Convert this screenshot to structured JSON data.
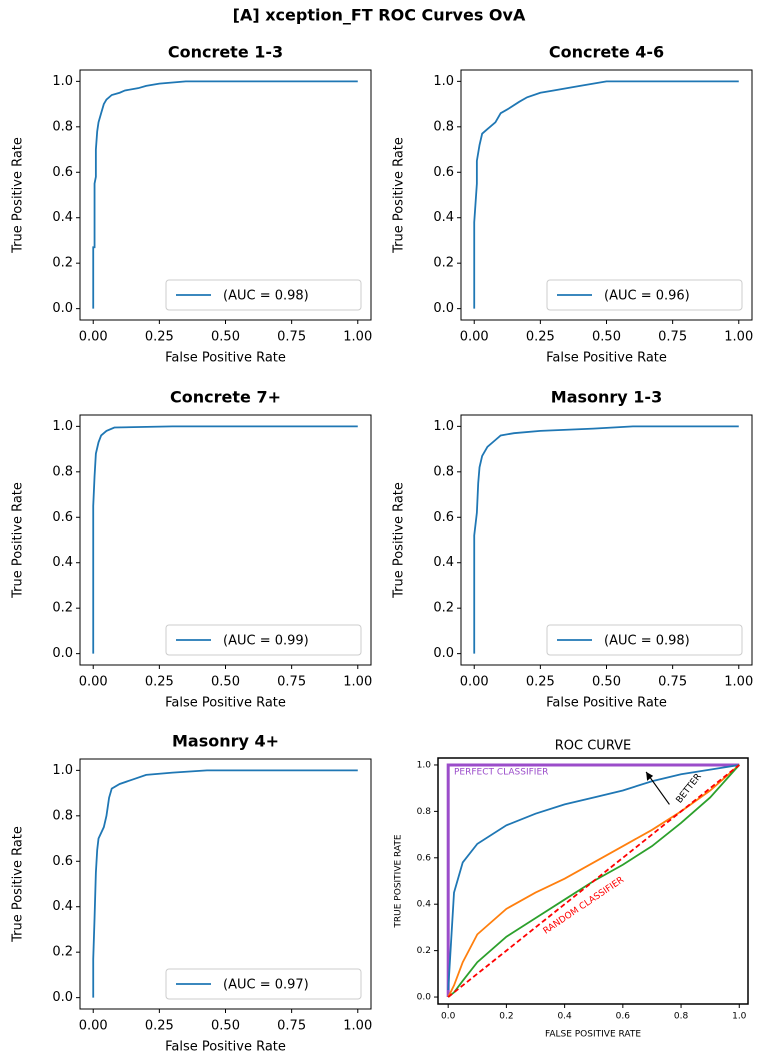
{
  "title": "[A] xception_FT ROC Curves OvA",
  "chart_data": [
    {
      "type": "line",
      "title": "Concrete 1-3",
      "xlabel": "False Positive Rate",
      "ylabel": "True Positive Rate",
      "x": [
        0,
        0,
        0.005,
        0.005,
        0.01,
        0.01,
        0.015,
        0.02,
        0.03,
        0.04,
        0.05,
        0.07,
        0.1,
        0.12,
        0.17,
        0.2,
        0.25,
        0.35,
        1
      ],
      "series": [
        {
          "name": "(AUC = 0.98)",
          "color": "#1f77b4",
          "values": [
            0,
            0.27,
            0.27,
            0.55,
            0.58,
            0.7,
            0.78,
            0.82,
            0.86,
            0.9,
            0.92,
            0.94,
            0.95,
            0.96,
            0.97,
            0.98,
            0.99,
            1,
            1
          ]
        }
      ],
      "xlim": [
        -0.05,
        1.05
      ],
      "ylim": [
        -0.05,
        1.05
      ],
      "xticks": [
        {
          "value": 0,
          "label": "0.00"
        },
        0.25,
        {
          "value": 0.5,
          "label": "0.50"
        },
        0.75,
        {
          "value": 1,
          "label": "1.00"
        }
      ],
      "yticks": [
        {
          "value": 0,
          "label": "0.0"
        },
        0.2,
        0.4,
        0.6,
        0.8,
        {
          "value": 1,
          "label": "1.0"
        }
      ],
      "legend": "lower right"
    },
    {
      "type": "line",
      "title": "Concrete 4-6",
      "xlabel": "False Positive Rate",
      "ylabel": "True Positive Rate",
      "x": [
        0,
        0,
        0.01,
        0.01,
        0.02,
        0.03,
        0.05,
        0.08,
        0.1,
        0.13,
        0.17,
        0.2,
        0.25,
        0.3,
        0.4,
        0.5,
        1
      ],
      "series": [
        {
          "name": "(AUC = 0.96)",
          "color": "#1f77b4",
          "values": [
            0,
            0.38,
            0.55,
            0.65,
            0.72,
            0.77,
            0.79,
            0.82,
            0.86,
            0.88,
            0.91,
            0.93,
            0.95,
            0.96,
            0.98,
            1,
            1
          ]
        }
      ],
      "xlim": [
        -0.05,
        1.05
      ],
      "ylim": [
        -0.05,
        1.05
      ],
      "xticks": [
        {
          "value": 0,
          "label": "0.00"
        },
        0.25,
        {
          "value": 0.5,
          "label": "0.50"
        },
        0.75,
        {
          "value": 1,
          "label": "1.00"
        }
      ],
      "yticks": [
        {
          "value": 0,
          "label": "0.0"
        },
        0.2,
        0.4,
        0.6,
        0.8,
        {
          "value": 1,
          "label": "1.0"
        }
      ],
      "legend": "lower right"
    },
    {
      "type": "line",
      "title": "Concrete 7+",
      "xlabel": "False Positive Rate",
      "ylabel": "True Positive Rate",
      "x": [
        0,
        0,
        0.005,
        0.01,
        0.02,
        0.03,
        0.05,
        0.08,
        0.3,
        1
      ],
      "series": [
        {
          "name": "(AUC = 0.99)",
          "color": "#1f77b4",
          "values": [
            0,
            0.65,
            0.78,
            0.88,
            0.93,
            0.96,
            0.98,
            0.995,
            1,
            1
          ]
        }
      ],
      "xlim": [
        -0.05,
        1.05
      ],
      "ylim": [
        -0.05,
        1.05
      ],
      "xticks": [
        {
          "value": 0,
          "label": "0.00"
        },
        0.25,
        {
          "value": 0.5,
          "label": "0.50"
        },
        0.75,
        {
          "value": 1,
          "label": "1.00"
        }
      ],
      "yticks": [
        {
          "value": 0,
          "label": "0.0"
        },
        0.2,
        0.4,
        0.6,
        0.8,
        {
          "value": 1,
          "label": "1.0"
        }
      ],
      "legend": "lower right"
    },
    {
      "type": "line",
      "title": "Masonry 1-3",
      "xlabel": "False Positive Rate",
      "ylabel": "True Positive Rate",
      "x": [
        0,
        0,
        0.01,
        0.015,
        0.02,
        0.03,
        0.05,
        0.08,
        0.1,
        0.15,
        0.25,
        0.45,
        0.6,
        1
      ],
      "series": [
        {
          "name": "(AUC = 0.98)",
          "color": "#1f77b4",
          "values": [
            0,
            0.52,
            0.62,
            0.75,
            0.82,
            0.87,
            0.91,
            0.94,
            0.96,
            0.97,
            0.98,
            0.99,
            1,
            1
          ]
        }
      ],
      "xlim": [
        -0.05,
        1.05
      ],
      "ylim": [
        -0.05,
        1.05
      ],
      "xticks": [
        {
          "value": 0,
          "label": "0.00"
        },
        0.25,
        {
          "value": 0.5,
          "label": "0.50"
        },
        0.75,
        {
          "value": 1,
          "label": "1.00"
        }
      ],
      "yticks": [
        {
          "value": 0,
          "label": "0.0"
        },
        0.2,
        0.4,
        0.6,
        0.8,
        {
          "value": 1,
          "label": "1.0"
        }
      ],
      "legend": "lower right"
    },
    {
      "type": "line",
      "title": "Masonry 4+",
      "xlabel": "False Positive Rate",
      "ylabel": "True Positive Rate",
      "x": [
        0,
        0,
        0.005,
        0.01,
        0.015,
        0.02,
        0.04,
        0.05,
        0.06,
        0.07,
        0.1,
        0.15,
        0.2,
        0.3,
        0.43,
        1
      ],
      "series": [
        {
          "name": "(AUC = 0.97)",
          "color": "#1f77b4",
          "values": [
            0,
            0.17,
            0.35,
            0.55,
            0.65,
            0.7,
            0.75,
            0.8,
            0.88,
            0.92,
            0.94,
            0.96,
            0.98,
            0.99,
            1,
            1
          ]
        }
      ],
      "xlim": [
        -0.05,
        1.05
      ],
      "ylim": [
        -0.05,
        1.05
      ],
      "xticks": [
        {
          "value": 0,
          "label": "0.00"
        },
        0.25,
        {
          "value": 0.5,
          "label": "0.50"
        },
        0.75,
        {
          "value": 1,
          "label": "1.00"
        }
      ],
      "yticks": [
        {
          "value": 0,
          "label": "0.0"
        },
        0.2,
        0.4,
        0.6,
        0.8,
        {
          "value": 1,
          "label": "1.0"
        }
      ],
      "legend": "lower right"
    },
    {
      "type": "line",
      "title": "ROC CURVE",
      "xlabel": "FALSE POSITIVE RATE",
      "ylabel": "TRUE POSITIVE RATE",
      "x": [
        0,
        0.02,
        0.05,
        0.1,
        0.2,
        0.3,
        0.4,
        0.5,
        0.6,
        0.7,
        0.8,
        0.9,
        1
      ],
      "series": [
        {
          "color": "#9b4dca",
          "x": [
            0,
            0,
            1
          ],
          "values": [
            0,
            1,
            1
          ]
        },
        {
          "color": "#1f77b4",
          "values": [
            0.03,
            0.45,
            0.58,
            0.66,
            0.74,
            0.79,
            0.83,
            0.86,
            0.89,
            0.93,
            0.96,
            0.98,
            1
          ]
        },
        {
          "color": "#ff7f0e",
          "values": [
            0,
            0.05,
            0.15,
            0.27,
            0.38,
            0.45,
            0.51,
            0.58,
            0.65,
            0.72,
            0.8,
            0.89,
            1
          ]
        },
        {
          "color": "#2ca02c",
          "values": [
            0,
            0.02,
            0.07,
            0.15,
            0.26,
            0.34,
            0.42,
            0.5,
            0.57,
            0.65,
            0.75,
            0.86,
            1
          ]
        },
        {
          "color": "#ff0000",
          "dashed": true,
          "values": [
            0,
            0.02,
            0.05,
            0.1,
            0.2,
            0.3,
            0.4,
            0.5,
            0.6,
            0.7,
            0.8,
            0.9,
            1
          ]
        }
      ],
      "xlim": [
        -0.035,
        1.03
      ],
      "ylim": [
        -0.03,
        1.03
      ],
      "xticks": [
        {
          "value": 0,
          "label": "0.0"
        },
        0.2,
        0.4,
        0.6,
        0.8,
        {
          "value": 1,
          "label": "1.0"
        }
      ],
      "yticks": [
        {
          "value": 0,
          "label": "0.0"
        },
        0.2,
        0.4,
        0.6,
        0.8,
        {
          "value": 1,
          "label": "1.0"
        }
      ],
      "annotations": [
        {
          "text": "PERFECT CLASSIFIER",
          "color": "#9b4dca"
        },
        {
          "text": "RANDOM CLASSIFIER",
          "color": "#ff0000"
        },
        {
          "text": "BETTER",
          "color": "#000000"
        }
      ]
    }
  ]
}
